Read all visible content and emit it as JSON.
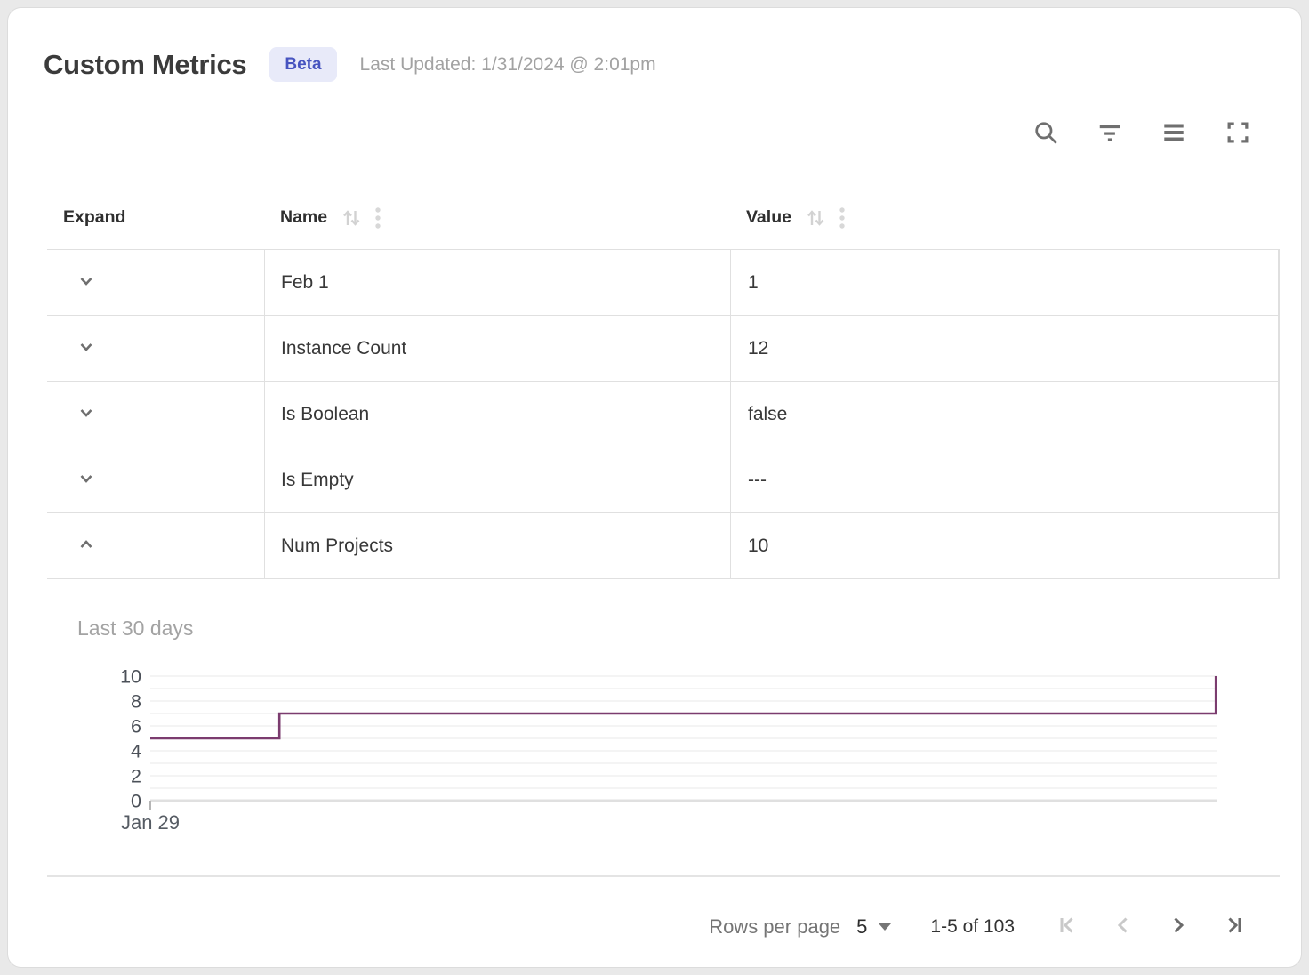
{
  "header": {
    "title": "Custom Metrics",
    "badge": "Beta",
    "last_updated": "Last Updated: 1/31/2024 @ 2:01pm"
  },
  "toolbar": {
    "icons": [
      "search",
      "filter",
      "density",
      "fullscreen"
    ]
  },
  "table": {
    "columns": {
      "expand": "Expand",
      "name": "Name",
      "value": "Value"
    },
    "rows": [
      {
        "name": "Feb 1",
        "value": "1",
        "expanded": false
      },
      {
        "name": "Instance Count",
        "value": "12",
        "expanded": false
      },
      {
        "name": "Is Boolean",
        "value": "false",
        "expanded": false
      },
      {
        "name": "Is Empty",
        "value": "---",
        "expanded": false
      },
      {
        "name": "Num Projects",
        "value": "10",
        "expanded": true
      }
    ]
  },
  "chart_data": {
    "type": "line",
    "title": "Last 30 days",
    "subtitle": "",
    "ylim": [
      0,
      10
    ],
    "yticks": [
      0,
      2,
      4,
      6,
      8,
      10
    ],
    "grid": "horizontal minor gridlines every 1 unit",
    "legend": "none",
    "xticks": [
      {
        "label": "Jan 29",
        "pos": 0
      }
    ],
    "step": true,
    "points": [
      {
        "x": 0,
        "y": 5
      },
      {
        "x": 0.121,
        "y": 5
      },
      {
        "x": 0.121,
        "y": 7
      },
      {
        "x": 0.9985,
        "y": 7
      },
      {
        "x": 0.9985,
        "y": 10
      }
    ],
    "line_color": "#7b3c6f",
    "grid_color": "#f1f1f1",
    "axis_color": "#e0e0e0",
    "tick_label_color": "#4b5058"
  },
  "footer": {
    "rows_per_page_label": "Rows per page",
    "rows_per_page_value": "5",
    "range_label": "1-5 of 103"
  },
  "colors": {
    "accent_badge_bg": "#e8eaf9",
    "accent_badge_text": "#4754c0",
    "chart_line": "#7b3c6f",
    "icon_gray": "#6f6f6f",
    "disabled_gray": "#c9c9c9"
  }
}
